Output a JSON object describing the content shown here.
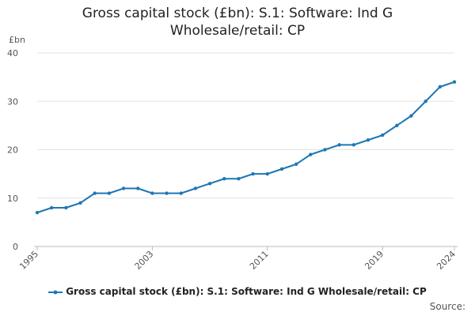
{
  "title_lines": [
    "Gross capital stock (£bn): S.1: Software: Ind G",
    "Wholesale/retail: CP"
  ],
  "unit_label": "£bn",
  "source_label": "Source:",
  "chart_data": {
    "type": "line",
    "title": "Gross capital stock (£bn): S.1: Software: Ind G Wholesale/retail: CP",
    "xlabel": "",
    "ylabel": "£bn",
    "ylim": [
      0,
      40
    ],
    "xlim": [
      1995,
      2024
    ],
    "y_ticks": [
      0,
      10,
      20,
      30,
      40
    ],
    "x_tick_labels": [
      "1995",
      "2003",
      "2011",
      "2019",
      "2024"
    ],
    "grid": true,
    "legend_position": "bottom",
    "series": [
      {
        "name": "Gross capital stock (£bn): S.1: Software: Ind G Wholesale/retail: CP",
        "color": "#1f77b4",
        "x": [
          1995,
          1996,
          1997,
          1998,
          1999,
          2000,
          2001,
          2002,
          2003,
          2004,
          2005,
          2006,
          2007,
          2008,
          2009,
          2010,
          2011,
          2012,
          2013,
          2014,
          2015,
          2016,
          2017,
          2018,
          2019,
          2020,
          2021,
          2022,
          2023,
          2024
        ],
        "values": [
          7,
          8,
          8,
          9,
          11,
          11,
          12,
          12,
          11,
          11,
          11,
          12,
          13,
          14,
          14,
          15,
          15,
          16,
          17,
          19,
          20,
          21,
          21,
          22,
          23,
          25,
          27,
          30,
          33,
          34
        ]
      }
    ]
  }
}
